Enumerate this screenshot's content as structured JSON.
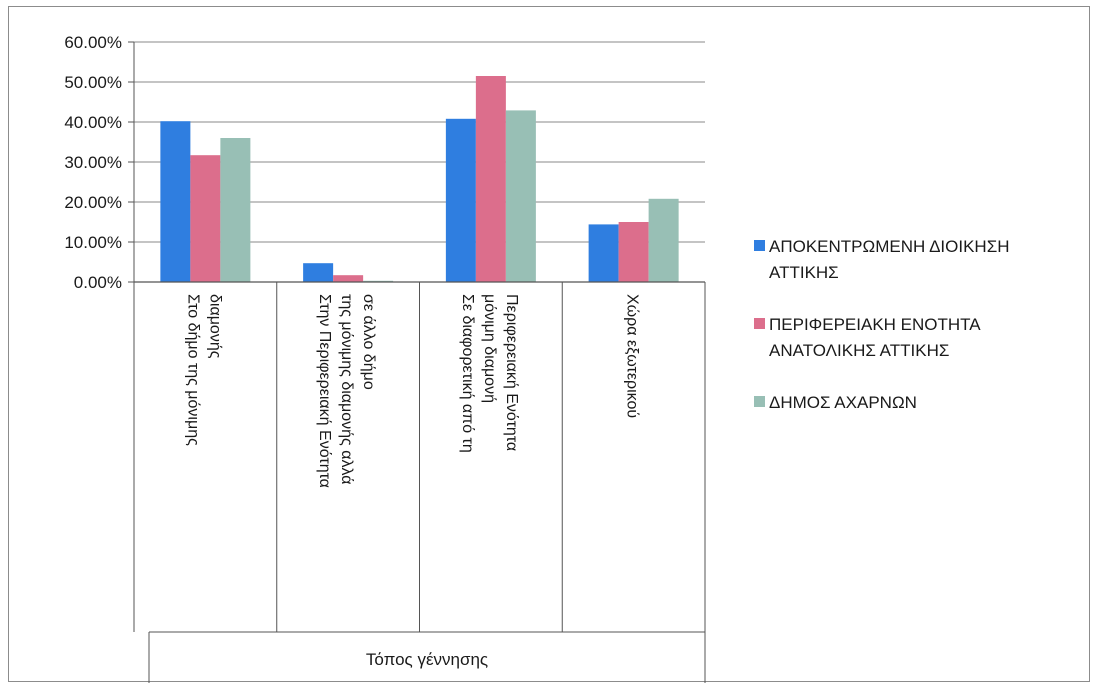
{
  "chart_data": {
    "type": "bar",
    "xlabel": "Τόπος γέννησης",
    "ylabel": "",
    "ylim": [
      0,
      60
    ],
    "y_ticks": [
      "60.00%",
      "50.00%",
      "40.00%",
      "30.00%",
      "20.00%",
      "10.00%",
      "0.00%"
    ],
    "y_tick_values": [
      60,
      50,
      40,
      30,
      20,
      10,
      0
    ],
    "grid": true,
    "legend_position": "right",
    "categories": [
      [
        "Στο δήμο της μόνιμης",
        "διαμονής"
      ],
      [
        "Στην Περιφερειακή Ενότητα",
        "της μόνιμης διαμονής αλλά",
        "σε άλλο δήμο"
      ],
      [
        "Σε διαφορετική από τη",
        "μόνιμη διαμονή",
        "Περιφερειακή Ενότητα"
      ],
      [
        "Χώρα εξωτερικού"
      ]
    ],
    "series": [
      {
        "name": [
          "ΑΠΟΚΕΝΤΡΩΜΕΝΗ ΔΙΟΙΚΗΣΗ",
          "ΑΤΤΙΚΗΣ"
        ],
        "color": "#2f7ee0",
        "values": [
          40.2,
          4.7,
          40.8,
          14.4
        ]
      },
      {
        "name": [
          "ΠΕΡΙΦΕΡΕΙΑΚΗ ΕΝΟΤΗΤΑ",
          "ΑΝΑΤΟΛΙΚΗΣ ΑΤΤΙΚΗΣ"
        ],
        "color": "#dc6e8c",
        "values": [
          31.7,
          1.7,
          51.5,
          15.0
        ]
      },
      {
        "name": [
          "ΔΗΜΟΣ ΑΧΑΡΝΩΝ"
        ],
        "color": "#98bfb5",
        "values": [
          36.0,
          0.3,
          42.9,
          20.8
        ]
      }
    ]
  }
}
